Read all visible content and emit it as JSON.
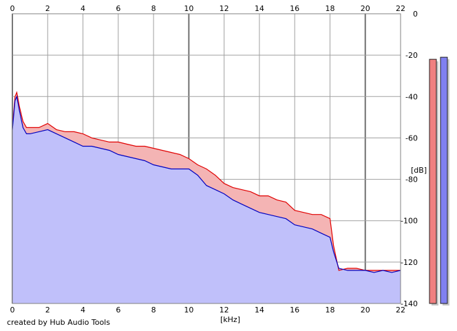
{
  "credit": "created by Hub Audio Tools",
  "chart_data": {
    "type": "area",
    "xlabel": "[kHz]",
    "ylabel": "[dB]",
    "xlim": [
      0,
      22
    ],
    "ylim": [
      -140,
      0
    ],
    "x_ticks": [
      0,
      2,
      4,
      6,
      8,
      10,
      12,
      14,
      16,
      18,
      20,
      22
    ],
    "x_tick_labels": [
      "0",
      "2",
      "4",
      "6",
      "8",
      "10",
      "12",
      "14",
      "16",
      "18",
      "20",
      "22"
    ],
    "y_ticks": [
      0,
      -20,
      -40,
      -60,
      -80,
      -100,
      -120,
      -140
    ],
    "y_tick_labels": [
      "0",
      "-20",
      "-40",
      "-60",
      "-80",
      "-100",
      "-120",
      "-140"
    ],
    "grid": true,
    "colors": {
      "red_line": "#e00000",
      "red_fill": "#f4b4b4",
      "blue_line": "#0000c0",
      "blue_fill": "#c0c0fa",
      "grid": "#a0a0a0",
      "grid_major": "#707070",
      "meter_red": "#f08080",
      "meter_blue": "#8080f0"
    },
    "series": [
      {
        "color": "red",
        "x": [
          0,
          0.15,
          0.25,
          0.4,
          0.6,
          0.8,
          1,
          1.5,
          2,
          2.5,
          3,
          3.5,
          4,
          4.5,
          5,
          5.5,
          6,
          6.5,
          7,
          7.5,
          8,
          8.5,
          9,
          9.5,
          10,
          10.5,
          11,
          11.5,
          12,
          12.5,
          13,
          13.5,
          14,
          14.5,
          15,
          15.5,
          16,
          16.5,
          17,
          17.5,
          18,
          18.2,
          18.5,
          19,
          19.5,
          20,
          20.5,
          21,
          21.5,
          22
        ],
        "values": [
          -55,
          -40,
          -38,
          -45,
          -52,
          -55,
          -55,
          -55,
          -53,
          -56,
          -57,
          -57,
          -58,
          -60,
          -61,
          -62,
          -62,
          -63,
          -64,
          -64,
          -65,
          -66,
          -67,
          -68,
          -70,
          -73,
          -75,
          -78,
          -82,
          -84,
          -85,
          -86,
          -88,
          -88,
          -90,
          -91,
          -95,
          -96,
          -97,
          -97,
          -99,
          -112,
          -124,
          -123,
          -123,
          -124,
          -124,
          -124,
          -124,
          -124
        ]
      },
      {
        "color": "blue",
        "x": [
          0,
          0.15,
          0.25,
          0.4,
          0.6,
          0.8,
          1,
          1.5,
          2,
          2.5,
          3,
          3.5,
          4,
          4.5,
          5,
          5.5,
          6,
          6.5,
          7,
          7.5,
          8,
          8.5,
          9,
          9.5,
          10,
          10.5,
          11,
          11.5,
          12,
          12.5,
          13,
          13.5,
          14,
          14.5,
          15,
          15.5,
          16,
          16.5,
          17,
          17.5,
          18,
          18.2,
          18.5,
          19,
          19.5,
          20,
          20.5,
          21,
          21.5,
          22
        ],
        "values": [
          -56,
          -42,
          -40,
          -47,
          -55,
          -58,
          -58,
          -57,
          -56,
          -58,
          -60,
          -62,
          -64,
          -64,
          -65,
          -66,
          -68,
          -69,
          -70,
          -71,
          -73,
          -74,
          -75,
          -75,
          -75,
          -78,
          -83,
          -85,
          -87,
          -90,
          -92,
          -94,
          -96,
          -97,
          -98,
          -99,
          -102,
          -103,
          -104,
          -106,
          -108,
          -115,
          -123,
          -124,
          -124,
          -124,
          -125,
          -124,
          -125,
          -124
        ]
      }
    ],
    "channel_meters": [
      {
        "color": "red",
        "value": -22
      },
      {
        "color": "blue",
        "value": -21
      }
    ]
  }
}
